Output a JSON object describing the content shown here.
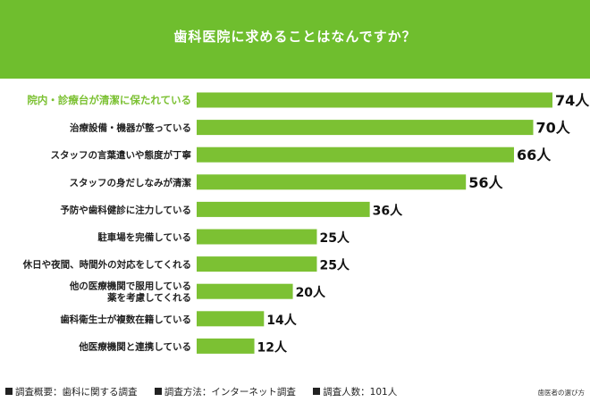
{
  "chart_data": {
    "type": "bar",
    "orientation": "horizontal",
    "title": "歯科医院に求めることはなんですか？",
    "categories": [
      "院内・診療台が清潔に保たれている",
      "治療設備・機器が整っている",
      "スタッフの言葉遣いや態度が丁寧",
      "スタッフの身だしなみが清潔",
      "予防や歯科健診に注力している",
      "駐車場を完備している",
      "休日や夜間、時間外の対応をしてくれる",
      "他の医療機関で服用している\n薬を考慮してくれる",
      "歯科衛生士が複数在籍している",
      "他医療機関と連携している"
    ],
    "values": [
      74,
      70,
      66,
      56,
      36,
      25,
      25,
      20,
      14,
      12
    ],
    "value_labels": [
      "74人",
      "70人",
      "66人",
      "56人",
      "36人",
      "25人",
      "25人",
      "20人",
      "14人",
      "12人"
    ],
    "highlight_index": 0,
    "bar_color": "#7cc133",
    "highlight_text_color": "#7cc133",
    "label_color": "#222222"
  },
  "footer": {
    "survey_overview": "調査概要：歯科に関する調査",
    "survey_method": "調査方法：インターネット調査",
    "respondents": "調査人数：101人",
    "credit": "歯医者の選び方"
  },
  "colors": {
    "header_bg": "#6fbe2e",
    "title_text": "#ffffff"
  }
}
